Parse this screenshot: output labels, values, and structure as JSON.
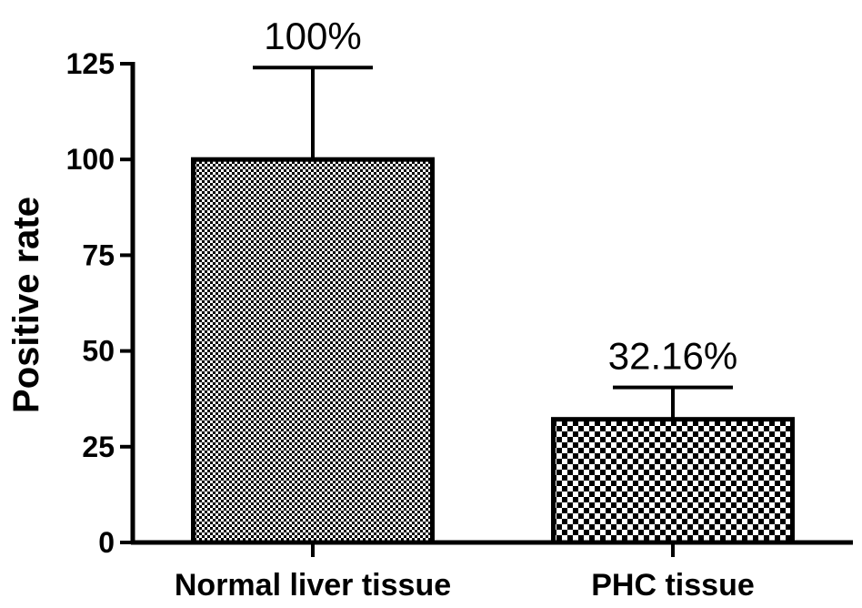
{
  "chart_data": {
    "type": "bar",
    "ylabel": "Positive rate",
    "ylim": [
      0,
      125
    ],
    "yticks": [
      0,
      25,
      50,
      75,
      100,
      125
    ],
    "categories": [
      "Normal liver tissue",
      "PHC tissue"
    ],
    "values": [
      100,
      32.16
    ],
    "error_upper": [
      124,
      40.5
    ],
    "data_labels": [
      "100%",
      "32.16%"
    ],
    "bar_patterns": [
      "fine-checker",
      "coarse-checker"
    ],
    "grid": false,
    "legend": "none"
  }
}
